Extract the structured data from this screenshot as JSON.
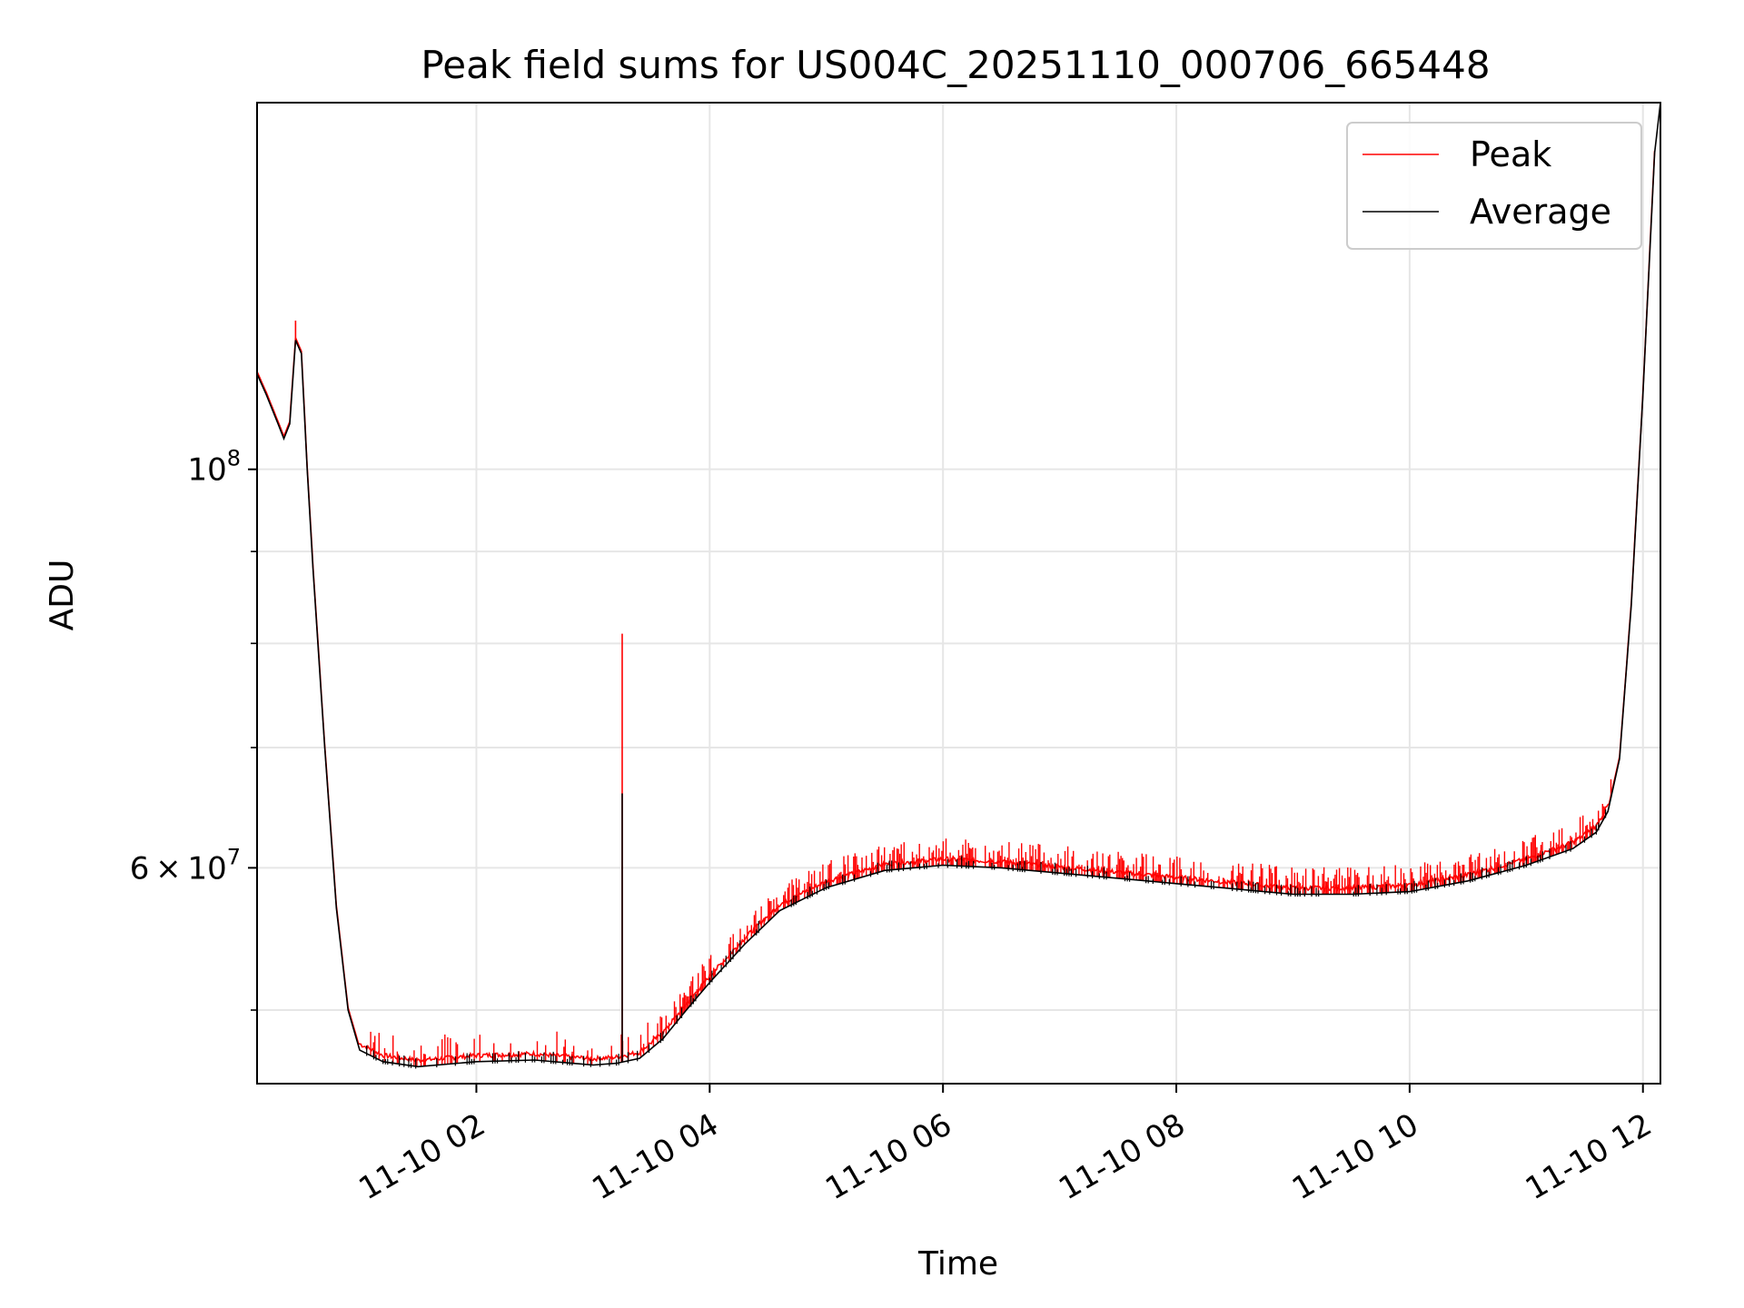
{
  "chart_data": {
    "type": "line",
    "title": "Peak field sums for US004C_20251110_000706_665448",
    "xlabel": "Time",
    "ylabel": "ADU",
    "yscale": "log",
    "x_unit": "hours since 11-10 00:00",
    "xlim": [
      0.12,
      12.15
    ],
    "ylim": [
      45500000,
      160000000
    ],
    "x_ticks": [
      {
        "value": 2,
        "label": "11-10 02"
      },
      {
        "value": 4,
        "label": "11-10 04"
      },
      {
        "value": 6,
        "label": "11-10 06"
      },
      {
        "value": 8,
        "label": "11-10 08"
      },
      {
        "value": 10,
        "label": "11-10 10"
      },
      {
        "value": 12,
        "label": "11-10 12"
      }
    ],
    "y_major_ticks": [
      {
        "value": 100000000,
        "base": "10",
        "exp": "8"
      },
      {
        "value": 60000000,
        "mant": "6",
        "times": "×",
        "base": "10",
        "exp": "7"
      }
    ],
    "y_minor_ticks": [
      50000000,
      70000000,
      80000000,
      90000000
    ],
    "grid": true,
    "legend": {
      "position": "top-right",
      "entries": [
        {
          "label": "Peak",
          "color": "#ff0000"
        },
        {
          "label": "Average",
          "color": "#000000"
        }
      ]
    },
    "series": [
      {
        "name": "Average",
        "color": "#000000",
        "points": [
          [
            0.12,
            113000000
          ],
          [
            0.2,
            110000000
          ],
          [
            0.3,
            106000000
          ],
          [
            0.35,
            104000000
          ],
          [
            0.4,
            106000000
          ],
          [
            0.45,
            118000000
          ],
          [
            0.5,
            116000000
          ],
          [
            0.55,
            100000000
          ],
          [
            0.6,
            88000000
          ],
          [
            0.7,
            70000000
          ],
          [
            0.8,
            57000000
          ],
          [
            0.9,
            50000000
          ],
          [
            1.0,
            47500000
          ],
          [
            1.2,
            46800000
          ],
          [
            1.5,
            46500000
          ],
          [
            2.0,
            46800000
          ],
          [
            2.5,
            46900000
          ],
          [
            3.0,
            46600000
          ],
          [
            3.2,
            46700000
          ],
          [
            3.4,
            47000000
          ],
          [
            3.6,
            48200000
          ],
          [
            3.8,
            50000000
          ],
          [
            4.0,
            51800000
          ],
          [
            4.3,
            54400000
          ],
          [
            4.6,
            56800000
          ],
          [
            5.0,
            58500000
          ],
          [
            5.5,
            59800000
          ],
          [
            6.0,
            60200000
          ],
          [
            6.5,
            60000000
          ],
          [
            7.0,
            59600000
          ],
          [
            7.5,
            59200000
          ],
          [
            8.0,
            58800000
          ],
          [
            8.5,
            58400000
          ],
          [
            9.0,
            58000000
          ],
          [
            9.5,
            58000000
          ],
          [
            10.0,
            58200000
          ],
          [
            10.5,
            59000000
          ],
          [
            11.0,
            60200000
          ],
          [
            11.4,
            61500000
          ],
          [
            11.6,
            62800000
          ],
          [
            11.7,
            64500000
          ],
          [
            11.8,
            69000000
          ],
          [
            11.9,
            84000000
          ],
          [
            12.0,
            110000000
          ],
          [
            12.1,
            150000000
          ],
          [
            12.15,
            160000000
          ]
        ],
        "spikes": [
          {
            "x": 3.25,
            "y": 66000000
          }
        ]
      },
      {
        "name": "Peak",
        "color": "#ff0000",
        "spikes": [
          {
            "x": 3.25,
            "y": 81000000
          },
          {
            "x": 0.12,
            "y": 116000000
          },
          {
            "x": 0.45,
            "y": 121000000
          }
        ]
      }
    ]
  }
}
